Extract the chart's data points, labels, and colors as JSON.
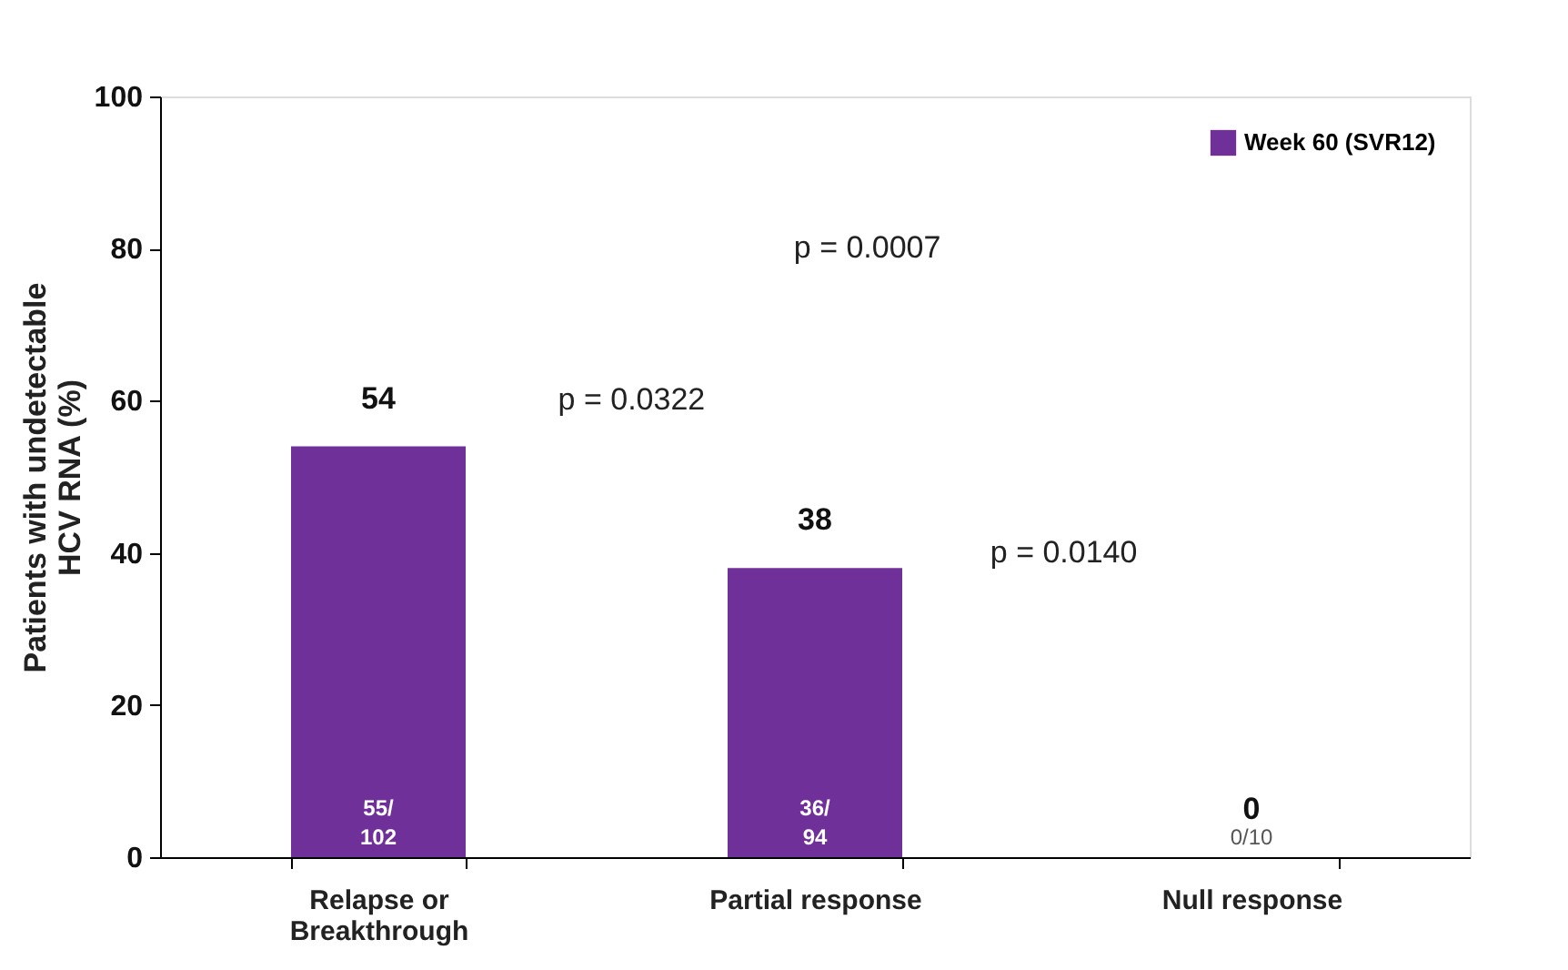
{
  "chart_data": {
    "type": "bar",
    "categories": [
      "Relapse or\nBreakthrough",
      "Partial response",
      "Null response"
    ],
    "series": [
      {
        "name": "Week 60 (SVR12)",
        "color": "#70309a",
        "values": [
          54,
          38,
          0
        ]
      }
    ],
    "ylabel": "Patients with undetectable\nHCV RNA (%)",
    "ylim": [
      0,
      100
    ],
    "yticks": [
      0,
      20,
      40,
      60,
      80,
      100
    ],
    "data_labels": true,
    "grid": false,
    "legend": "top right",
    "annotations": [
      "55/\n102",
      "36/\n94",
      "0/10",
      "p = 0.0322",
      "p = 0.0007",
      "p = 0.0140"
    ]
  }
}
